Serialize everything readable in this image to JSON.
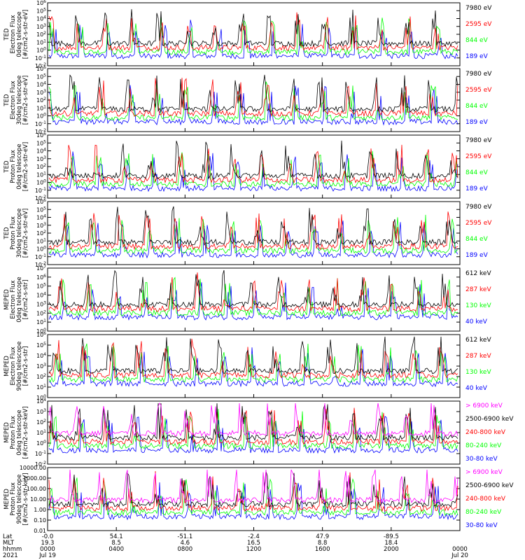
{
  "colors": {
    "black": "#000000",
    "red": "#ff0000",
    "green": "#00ff00",
    "blue": "#0000ff",
    "magenta": "#ff00ff"
  },
  "chart_data": [
    {
      "type": "line",
      "ylabel": [
        "TED",
        "Electron Flux",
        "0deg telescope",
        "[#/cm2-s-str-eV]"
      ],
      "yscale": "log",
      "ylim": [
        0.01,
        1000000
      ],
      "yticks": [
        "10-2",
        "10-1",
        "100",
        "101",
        "102",
        "103",
        "104",
        "105",
        "106"
      ],
      "legend": [
        {
          "label": "7980 eV",
          "color": "#000000"
        },
        {
          "label": "2595 eV",
          "color": "#ff0000"
        },
        {
          "label": "844 eV",
          "color": "#00ff00"
        },
        {
          "label": "189 eV",
          "color": "#0000ff"
        }
      ]
    },
    {
      "type": "line",
      "ylabel": [
        "TED",
        "Electron Flux",
        "30deg telescope",
        "[#/cm2-s-str-eV]"
      ],
      "yscale": "log",
      "ylim": [
        0.01,
        1000000
      ],
      "yticks": [
        "10-2",
        "10-1",
        "100",
        "101",
        "102",
        "103",
        "104",
        "105",
        "106"
      ],
      "legend": [
        {
          "label": "7980 eV",
          "color": "#000000"
        },
        {
          "label": "2595 eV",
          "color": "#ff0000"
        },
        {
          "label": "844 eV",
          "color": "#00ff00"
        },
        {
          "label": "189 eV",
          "color": "#0000ff"
        }
      ]
    },
    {
      "type": "line",
      "ylabel": [
        "TED",
        "Proton Flux",
        "0deg telescope",
        "[#/cm2-s-str-eV]"
      ],
      "yscale": "log",
      "ylim": [
        0.01,
        1000000
      ],
      "yticks": [
        "10-2",
        "10-1",
        "100",
        "101",
        "102",
        "103",
        "104",
        "105",
        "106"
      ],
      "legend": [
        {
          "label": "7980 eV",
          "color": "#000000"
        },
        {
          "label": "2595 eV",
          "color": "#ff0000"
        },
        {
          "label": "844 eV",
          "color": "#00ff00"
        },
        {
          "label": "189 eV",
          "color": "#0000ff"
        }
      ]
    },
    {
      "type": "line",
      "ylabel": [
        "TED",
        "Proton Flux",
        "30deg telescope",
        "[#/cm2-s-str-eV]"
      ],
      "yscale": "log",
      "ylim": [
        0.01,
        1000000
      ],
      "yticks": [
        "10-2",
        "10-1",
        "100",
        "101",
        "102",
        "103",
        "104",
        "105",
        "106"
      ],
      "legend": [
        {
          "label": "7980 eV",
          "color": "#000000"
        },
        {
          "label": "2595 eV",
          "color": "#ff0000"
        },
        {
          "label": "844 eV",
          "color": "#00ff00"
        },
        {
          "label": "189 eV",
          "color": "#0000ff"
        }
      ]
    },
    {
      "type": "line",
      "ylabel": [
        "MEPED",
        "Electron Flux",
        "0deg telescope",
        "[#/cm2-s-str]"
      ],
      "yscale": "log",
      "ylim": [
        1,
        10000000
      ],
      "yticks": [
        "100",
        "101",
        "102",
        "103",
        "104",
        "105",
        "106",
        "107"
      ],
      "legend": [
        {
          "label": "612 keV",
          "color": "#000000"
        },
        {
          "label": "287 keV",
          "color": "#ff0000"
        },
        {
          "label": "130 keV",
          "color": "#00ff00"
        },
        {
          "label": "40 keV",
          "color": "#0000ff"
        }
      ]
    },
    {
      "type": "line",
      "ylabel": [
        "MEPED",
        "Electron Flux",
        "90deg telescope",
        "[#/cm2-s-str]"
      ],
      "yscale": "log",
      "ylim": [
        1,
        1000000
      ],
      "yticks": [
        "100",
        "101",
        "102",
        "103",
        "104",
        "105",
        "106"
      ],
      "legend": [
        {
          "label": "612 keV",
          "color": "#000000"
        },
        {
          "label": "287 keV",
          "color": "#ff0000"
        },
        {
          "label": "130 keV",
          "color": "#00ff00"
        },
        {
          "label": "40 keV",
          "color": "#0000ff"
        }
      ]
    },
    {
      "type": "line",
      "ylabel": [
        "MEPED",
        "Proton Flux",
        "0deg telescope",
        "[#/cm2-s-str-keV]"
      ],
      "yscale": "log",
      "ylim": [
        0.01,
        10000
      ],
      "yticks": [
        "10-2",
        "10-1",
        "100",
        "101",
        "102",
        "103",
        "104"
      ],
      "legend": [
        {
          "label": "> 6900 keV",
          "color": "#ff00ff"
        },
        {
          "label": "2500-6900 keV",
          "color": "#000000"
        },
        {
          "label": "240-800 keV",
          "color": "#ff0000"
        },
        {
          "label": "80-240 keV",
          "color": "#00ff00"
        },
        {
          "label": "30-80 keV",
          "color": "#0000ff"
        }
      ]
    },
    {
      "type": "line",
      "ylabel": [
        "MEPED",
        "Proton Flux",
        "90deg telescope",
        "[#/cm2-s-str-keV]"
      ],
      "yscale": "log",
      "ylim": [
        0.01,
        10000
      ],
      "yticks": [
        "0.01",
        "0.10",
        "1.00",
        "10.00",
        "100.00",
        "1000.00",
        "10000.00"
      ],
      "legend": [
        {
          "label": "> 6900 keV",
          "color": "#ff00ff"
        },
        {
          "label": "2500-6900 keV",
          "color": "#000000"
        },
        {
          "label": "240-800 keV",
          "color": "#ff0000"
        },
        {
          "label": "80-240 keV",
          "color": "#00ff00"
        },
        {
          "label": "30-80 keV",
          "color": "#0000ff"
        }
      ]
    }
  ],
  "xaxis": {
    "row_labels": [
      "Lat",
      "MLT",
      "hhmm",
      "2021"
    ],
    "ticks": [
      {
        "lat": "-0.0",
        "mlt": "19.3",
        "hhmm": "0000",
        "date": "Jul 19"
      },
      {
        "lat": "54.1",
        "mlt": "8.5",
        "hhmm": "0400",
        "date": ""
      },
      {
        "lat": "-51.1",
        "mlt": "4.6",
        "hhmm": "0800",
        "date": ""
      },
      {
        "lat": "-2.4",
        "mlt": "16.5",
        "hhmm": "1200",
        "date": ""
      },
      {
        "lat": "47.9",
        "mlt": "8.8",
        "hhmm": "1600",
        "date": ""
      },
      {
        "lat": "-89.5",
        "mlt": "18.4",
        "hhmm": "2000",
        "date": ""
      },
      {
        "lat": "",
        "mlt": "",
        "hhmm": "0000",
        "date": "Jul 20"
      }
    ]
  }
}
